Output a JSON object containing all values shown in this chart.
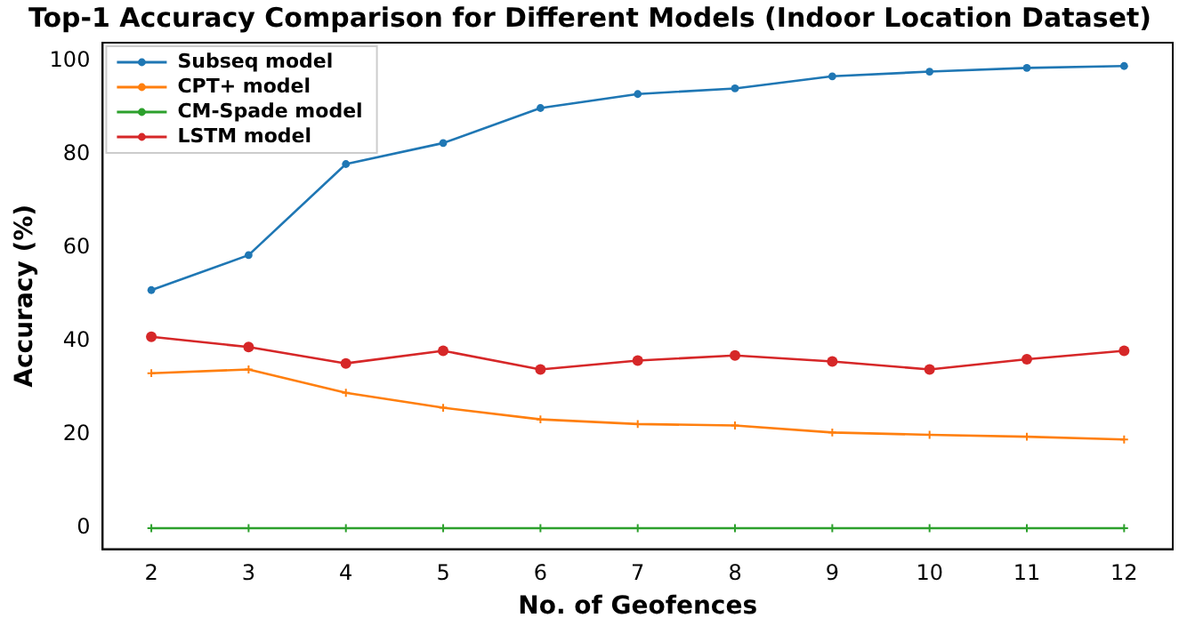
{
  "chart_data": {
    "type": "line",
    "title": "Top-1 Accuracy Comparison for Different Models (Indoor Location Dataset)",
    "xlabel": "No. of Geofences",
    "ylabel": "Accuracy (%)",
    "categories": [
      "2",
      "3",
      "4",
      "5",
      "6",
      "7",
      "8",
      "9",
      "10",
      "11",
      "12"
    ],
    "series": [
      {
        "name": "Subseq model",
        "color": "#1f77b4",
        "marker": "circle",
        "values": [
          51,
          58.5,
          78,
          82.5,
          90,
          93,
          94.2,
          96.8,
          97.8,
          98.6,
          99
        ]
      },
      {
        "name": "CPT+ model",
        "color": "#ff7f0e",
        "marker": "cross",
        "values": [
          33.2,
          34,
          29,
          25.8,
          23.3,
          22.3,
          22,
          20.5,
          20,
          19.6,
          19
        ]
      },
      {
        "name": "CM-Spade model",
        "color": "#2ca02c",
        "marker": "cross",
        "values": [
          0,
          0,
          0,
          0,
          0,
          0,
          0,
          0,
          0,
          0,
          0
        ]
      },
      {
        "name": "LSTM model",
        "color": "#d62728",
        "marker": "circle",
        "values": [
          41,
          38.8,
          35.3,
          38,
          34,
          35.9,
          37,
          35.7,
          34,
          36.2,
          38
        ]
      }
    ],
    "ylim": [
      -4.5,
      104
    ],
    "yticks": [
      0,
      20,
      40,
      60,
      80,
      100
    ],
    "grid": false,
    "legend": "top left",
    "line_style": "solid"
  }
}
